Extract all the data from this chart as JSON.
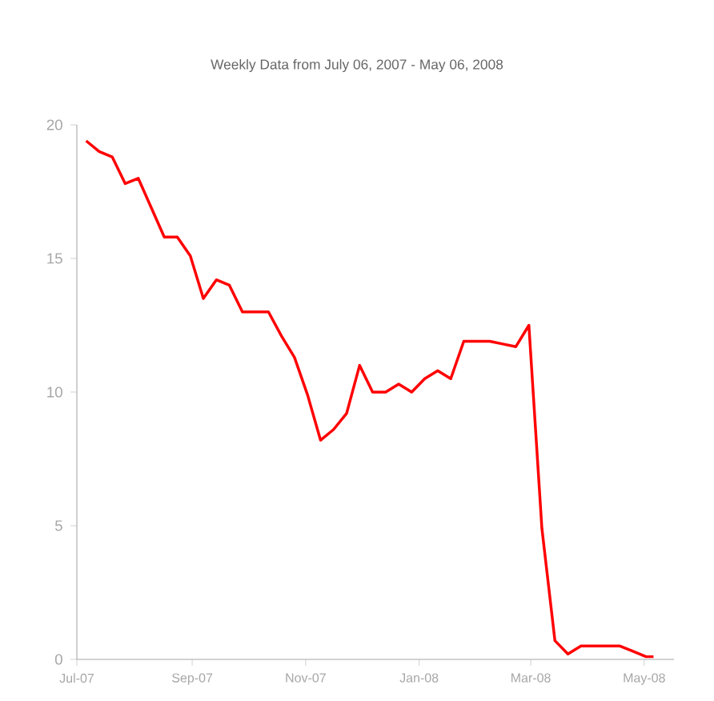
{
  "chart_data": {
    "type": "line",
    "subtitle": "Weekly Data from July 06, 2007 - May 06, 2008",
    "x": [
      "2007-07-06",
      "2007-07-13",
      "2007-07-20",
      "2007-07-27",
      "2007-08-03",
      "2007-08-10",
      "2007-08-17",
      "2007-08-24",
      "2007-08-31",
      "2007-09-07",
      "2007-09-14",
      "2007-09-21",
      "2007-09-28",
      "2007-10-05",
      "2007-10-12",
      "2007-10-19",
      "2007-10-26",
      "2007-11-02",
      "2007-11-09",
      "2007-11-16",
      "2007-11-23",
      "2007-11-30",
      "2007-12-07",
      "2007-12-14",
      "2007-12-21",
      "2007-12-28",
      "2008-01-04",
      "2008-01-11",
      "2008-01-18",
      "2008-01-25",
      "2008-02-01",
      "2008-02-08",
      "2008-02-15",
      "2008-02-22",
      "2008-02-29",
      "2008-03-07",
      "2008-03-14",
      "2008-03-21",
      "2008-03-28",
      "2008-04-04",
      "2008-04-11",
      "2008-04-18",
      "2008-04-25",
      "2008-05-02",
      "2008-05-06"
    ],
    "values": [
      19.4,
      19.0,
      18.8,
      17.8,
      18.0,
      16.9,
      15.8,
      15.8,
      15.1,
      13.5,
      14.2,
      14.0,
      13.0,
      13.0,
      13.0,
      12.1,
      11.3,
      9.9,
      8.2,
      8.6,
      9.2,
      11.0,
      10.0,
      10.0,
      10.3,
      10.0,
      10.5,
      10.8,
      10.5,
      11.9,
      11.9,
      11.9,
      11.8,
      11.7,
      12.5,
      4.9,
      0.7,
      0.2,
      0.5,
      0.5,
      0.5,
      0.5,
      0.3,
      0.1,
      0.1
    ],
    "color": "#ff0000",
    "xlim": [
      "2007-07-01",
      "2008-05-17"
    ],
    "xticks": [
      {
        "value": "2007-07-01",
        "label": "Jul-07"
      },
      {
        "value": "2007-09-01",
        "label": "Sep-07"
      },
      {
        "value": "2007-11-01",
        "label": "Nov-07"
      },
      {
        "value": "2008-01-01",
        "label": "Jan-08"
      },
      {
        "value": "2008-03-01",
        "label": "Mar-08"
      },
      {
        "value": "2008-05-01",
        "label": "May-08"
      }
    ],
    "ylim": [
      0,
      20
    ],
    "yticks": [
      0,
      5,
      10,
      15,
      20
    ]
  }
}
